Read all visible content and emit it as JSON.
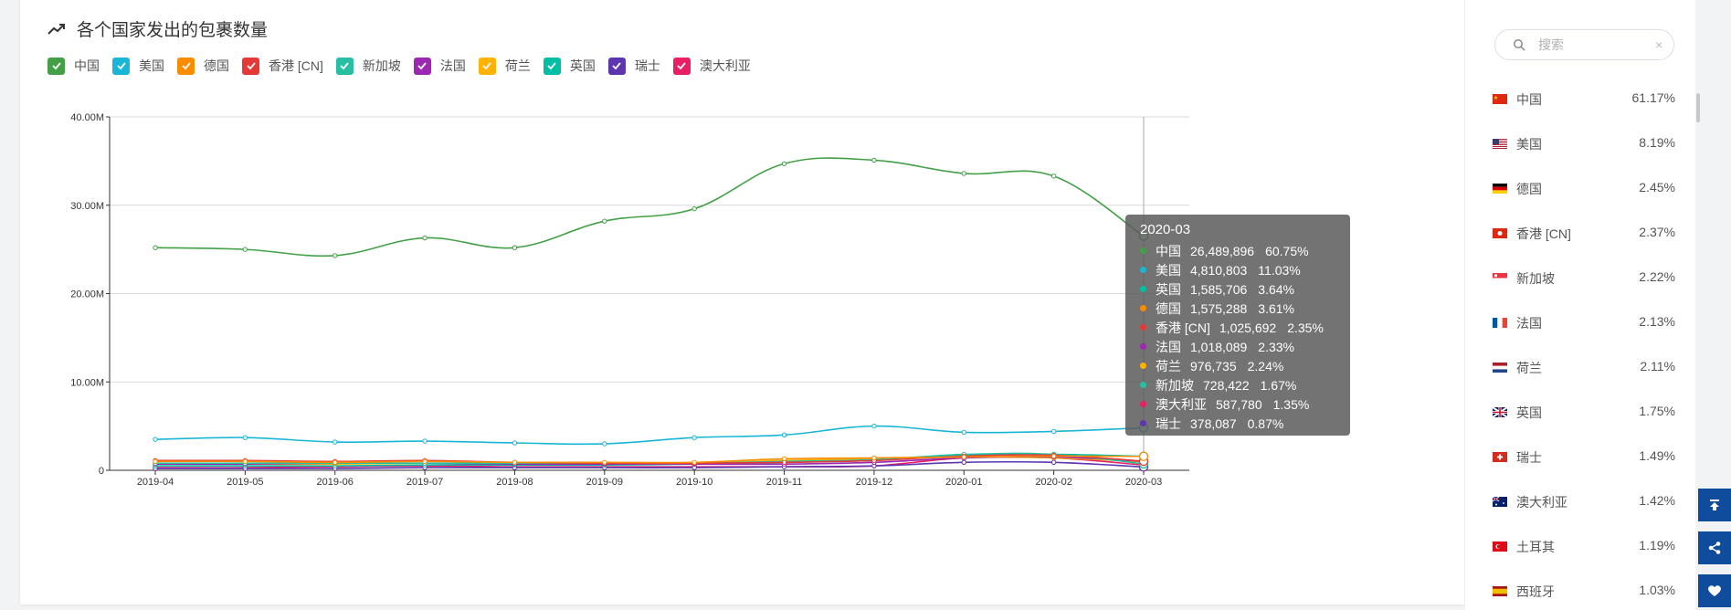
{
  "header": {
    "title": "各个国家发出的包裹数量"
  },
  "legend": [
    {
      "label": "中国",
      "color": "#43a047"
    },
    {
      "label": "美国",
      "color": "#1ab6d8"
    },
    {
      "label": "德国",
      "color": "#fb8c00"
    },
    {
      "label": "香港 [CN]",
      "color": "#e53935"
    },
    {
      "label": "新加坡",
      "color": "#26bfa3"
    },
    {
      "label": "法国",
      "color": "#9c27b0"
    },
    {
      "label": "荷兰",
      "color": "#ffb300"
    },
    {
      "label": "英国",
      "color": "#00bfa5"
    },
    {
      "label": "瑞士",
      "color": "#5e35b1"
    },
    {
      "label": "澳大利亚",
      "color": "#e91e63"
    }
  ],
  "chart_data": {
    "type": "line",
    "title": "各个国家发出的包裹数量",
    "categories": [
      "2019-04",
      "2019-05",
      "2019-06",
      "2019-07",
      "2019-08",
      "2019-09",
      "2019-10",
      "2019-11",
      "2019-12",
      "2020-01",
      "2020-02",
      "2020-03"
    ],
    "ylim": [
      0,
      40000000
    ],
    "yticks": [
      "0",
      "10.00M",
      "20.00M",
      "30.00M",
      "40.00M"
    ],
    "ytick_values": [
      0,
      10000000,
      20000000,
      30000000,
      40000000
    ],
    "grid": true,
    "series": [
      {
        "name": "中国",
        "color": "#43a047",
        "values": [
          25200000,
          25000000,
          24300000,
          26300000,
          25200000,
          28200000,
          29600000,
          34700000,
          35100000,
          33600000,
          33300000,
          26489896
        ]
      },
      {
        "name": "美国",
        "color": "#1ab6d8",
        "values": [
          3500000,
          3700000,
          3200000,
          3300000,
          3100000,
          3000000,
          3700000,
          4000000,
          5000000,
          4300000,
          4400000,
          4810803
        ]
      },
      {
        "name": "德国",
        "color": "#fb8c00",
        "values": [
          1000000,
          1000000,
          900000,
          1000000,
          900000,
          900000,
          900000,
          1300000,
          1400000,
          1500000,
          1600000,
          1575288
        ]
      },
      {
        "name": "香港 [CN]",
        "color": "#e53935",
        "values": [
          1100000,
          1100000,
          1000000,
          1100000,
          900000,
          800000,
          800000,
          900000,
          1100000,
          1600000,
          1700000,
          1025692
        ]
      },
      {
        "name": "新加坡",
        "color": "#26bfa3",
        "values": [
          800000,
          800000,
          800000,
          800000,
          800000,
          800000,
          800000,
          1000000,
          1200000,
          1800000,
          1800000,
          728422
        ]
      },
      {
        "name": "法国",
        "color": "#9c27b0",
        "values": [
          700000,
          700000,
          800000,
          800000,
          700000,
          700000,
          700000,
          700000,
          900000,
          1400000,
          1500000,
          1018089
        ]
      },
      {
        "name": "荷兰",
        "color": "#ffb300",
        "values": [
          700000,
          700000,
          700000,
          800000,
          800000,
          800000,
          800000,
          1100000,
          1300000,
          1500000,
          1400000,
          976735
        ]
      },
      {
        "name": "英国",
        "color": "#00bfa5",
        "values": [
          500000,
          500000,
          500000,
          600000,
          600000,
          600000,
          700000,
          900000,
          1100000,
          1700000,
          1800000,
          1585706
        ]
      },
      {
        "name": "瑞士",
        "color": "#5e35b1",
        "values": [
          200000,
          200000,
          200000,
          300000,
          300000,
          300000,
          300000,
          400000,
          500000,
          900000,
          900000,
          378087
        ]
      },
      {
        "name": "澳大利亚",
        "color": "#e91e63",
        "values": [
          300000,
          300000,
          400000,
          500000,
          400000,
          400000,
          400000,
          400000,
          500000,
          1400000,
          1400000,
          587780
        ]
      }
    ],
    "highlight_index": 11
  },
  "tooltip": {
    "date": "2020-03",
    "rows": [
      {
        "name": "中国",
        "value": "26,489,896",
        "pct": "60.75%",
        "color": "#43a047"
      },
      {
        "name": "美国",
        "value": "4,810,803",
        "pct": "11.03%",
        "color": "#1ab6d8"
      },
      {
        "name": "英国",
        "value": "1,585,706",
        "pct": "3.64%",
        "color": "#00bfa5"
      },
      {
        "name": "德国",
        "value": "1,575,288",
        "pct": "3.61%",
        "color": "#fb8c00"
      },
      {
        "name": "香港 [CN]",
        "value": "1,025,692",
        "pct": "2.35%",
        "color": "#e53935"
      },
      {
        "name": "法国",
        "value": "1,018,089",
        "pct": "2.33%",
        "color": "#9c27b0"
      },
      {
        "name": "荷兰",
        "value": "976,735",
        "pct": "2.24%",
        "color": "#ffb300"
      },
      {
        "name": "新加坡",
        "value": "728,422",
        "pct": "1.67%",
        "color": "#26bfa3"
      },
      {
        "name": "澳大利亚",
        "value": "587,780",
        "pct": "1.35%",
        "color": "#e91e63"
      },
      {
        "name": "瑞士",
        "value": "378,087",
        "pct": "0.87%",
        "color": "#5e35b1"
      }
    ]
  },
  "sidebar": {
    "search_placeholder": "搜索",
    "clear_icon": "×",
    "countries": [
      {
        "name": "中国",
        "pct": "61.17%",
        "flag": "cn"
      },
      {
        "name": "美国",
        "pct": "8.19%",
        "flag": "us"
      },
      {
        "name": "德国",
        "pct": "2.45%",
        "flag": "de"
      },
      {
        "name": "香港 [CN]",
        "pct": "2.37%",
        "flag": "hk"
      },
      {
        "name": "新加坡",
        "pct": "2.22%",
        "flag": "sg"
      },
      {
        "name": "法国",
        "pct": "2.13%",
        "flag": "fr"
      },
      {
        "name": "荷兰",
        "pct": "2.11%",
        "flag": "nl"
      },
      {
        "name": "英国",
        "pct": "1.75%",
        "flag": "gb"
      },
      {
        "name": "瑞士",
        "pct": "1.49%",
        "flag": "ch"
      },
      {
        "name": "澳大利亚",
        "pct": "1.42%",
        "flag": "au"
      },
      {
        "name": "土耳其",
        "pct": "1.19%",
        "flag": "tr"
      },
      {
        "name": "西班牙",
        "pct": "1.03%",
        "flag": "es"
      }
    ]
  },
  "fabs": [
    "scroll-top-icon",
    "share-icon",
    "heart-icon"
  ]
}
